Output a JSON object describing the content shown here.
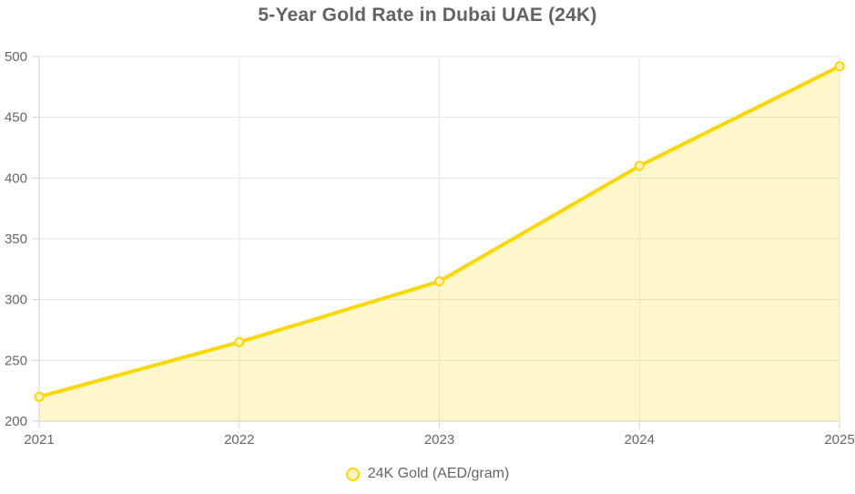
{
  "title": "5-Year Gold Rate in Dubai UAE (24K)",
  "legend": {
    "series_label": "24K Gold (AED/gram)"
  },
  "chart_data": {
    "type": "line",
    "categories": [
      "2021",
      "2022",
      "2023",
      "2024",
      "2025"
    ],
    "series": [
      {
        "name": "24K Gold (AED/gram)",
        "values": [
          220,
          265,
          315,
          410,
          492
        ]
      }
    ],
    "title": "5-Year Gold Rate in Dubai UAE (24K)",
    "xlabel": "",
    "ylabel": "",
    "ylim": [
      200,
      500
    ],
    "ytick_step": 50,
    "grid": true,
    "legend_position": "bottom",
    "colors": {
      "line": "#ffd700",
      "area_fill": "rgba(255,215,0,0.20)",
      "point_fill": "#fdf3c0",
      "grid": "#e6e6e6",
      "axis": "#d2d2d2",
      "tick_text": "#666666",
      "title_text": "#636363"
    }
  }
}
